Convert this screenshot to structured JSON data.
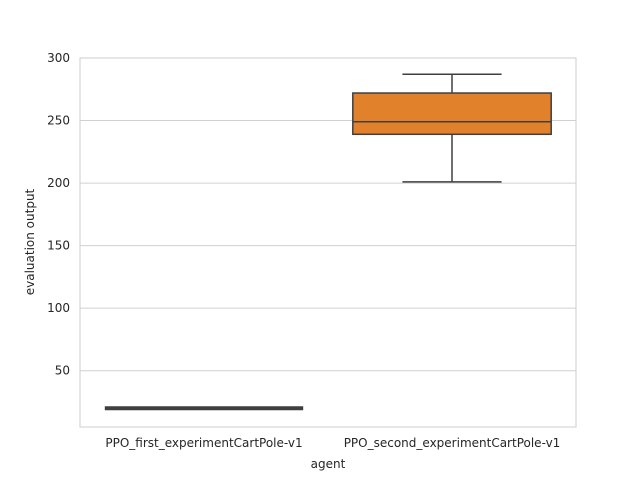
{
  "chart_data": {
    "type": "box",
    "xlabel": "agent",
    "ylabel": "evaluation output",
    "ylim": [
      5,
      300
    ],
    "yticks": [
      50,
      100,
      150,
      200,
      250,
      300
    ],
    "grid": "horizontal",
    "categories": [
      "PPO_first_experimentCartPole-v1",
      "PPO_second_experimentCartPole-v1"
    ],
    "boxes": [
      {
        "category": "PPO_first_experimentCartPole-v1",
        "min": 20,
        "q1": 20,
        "median": 20,
        "q3": 20,
        "max": 20,
        "color": "#3274a1"
      },
      {
        "category": "PPO_second_experimentCartPole-v1",
        "min": 201,
        "q1": 239,
        "median": 249,
        "q3": 272,
        "max": 287,
        "color": "#e1812c"
      }
    ]
  }
}
